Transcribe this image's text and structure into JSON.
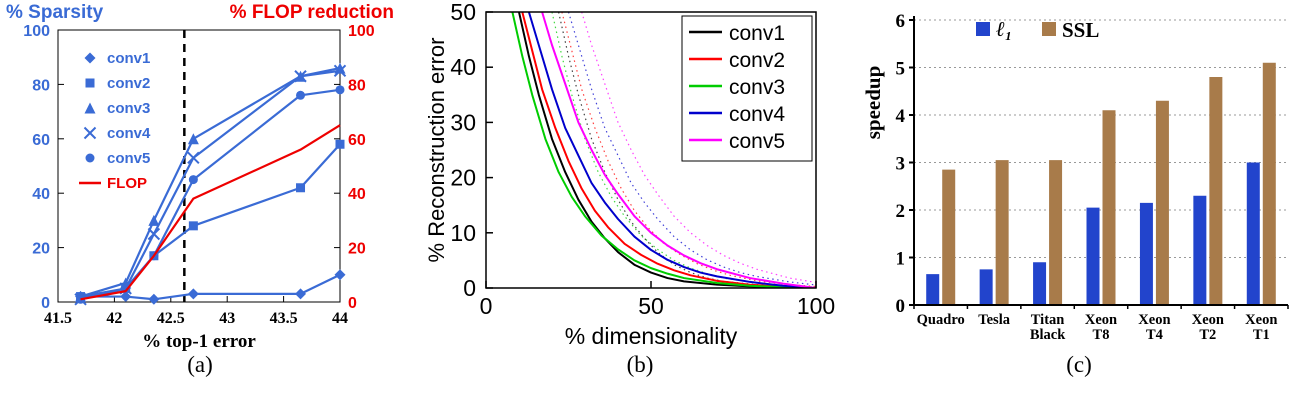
{
  "figure": {
    "captions": {
      "a": "(a)",
      "b": "(b)",
      "c": "(c)"
    }
  },
  "chart_data": [
    {
      "id": "a",
      "type": "line",
      "title_left": "% Sparsity",
      "title_right": "% FLOP reduction",
      "xlabel": "% top-1 error",
      "xlim": [
        41.5,
        44
      ],
      "xticks": [
        41.5,
        42,
        42.5,
        43,
        43.5,
        44
      ],
      "ylim": [
        0,
        100
      ],
      "yticks": [
        0,
        20,
        40,
        60,
        80,
        100
      ],
      "dashed_line_x": 42.62,
      "colors": {
        "left": "#3A6BD5",
        "right": "#EE0000"
      },
      "x": [
        41.7,
        42.1,
        42.35,
        42.7,
        43.65,
        44
      ],
      "series": [
        {
          "name": "conv1",
          "marker": "diamond",
          "color": "#3A6BD5",
          "values": [
            2,
            2,
            1,
            3,
            3,
            10
          ]
        },
        {
          "name": "conv2",
          "marker": "square",
          "color": "#3A6BD5",
          "values": [
            2,
            5,
            17,
            28,
            42,
            58
          ]
        },
        {
          "name": "conv3",
          "marker": "triangle",
          "color": "#3A6BD5",
          "values": [
            2,
            7,
            30,
            60,
            83,
            86
          ]
        },
        {
          "name": "conv4",
          "marker": "x",
          "color": "#3A6BD5",
          "values": [
            1,
            5,
            25,
            53,
            83,
            85
          ]
        },
        {
          "name": "conv5",
          "marker": "circle",
          "color": "#3A6BD5",
          "values": [
            1,
            5,
            17,
            45,
            76,
            78
          ]
        },
        {
          "name": "FLOP",
          "marker": "none",
          "color": "#EE0000",
          "values": [
            1,
            4,
            17,
            38,
            56,
            65
          ]
        }
      ]
    },
    {
      "id": "b",
      "type": "line",
      "xlabel": "% dimensionality",
      "ylabel": "% Reconstruction error",
      "xlim": [
        0,
        100
      ],
      "xticks": [
        0,
        50,
        100
      ],
      "ylim": [
        0,
        50
      ],
      "yticks": [
        0,
        10,
        20,
        30,
        40,
        50
      ],
      "legend_position": "top-right",
      "dotted_shift": 12,
      "series": [
        {
          "name": "conv1",
          "color": "#000000",
          "x": [
            10,
            13,
            16,
            20,
            24,
            28,
            32,
            36,
            40,
            45,
            50,
            55,
            60,
            70,
            80,
            90,
            100
          ],
          "y": [
            50,
            42,
            35,
            27,
            21,
            16,
            12,
            9,
            6.5,
            4.2,
            2.8,
            1.8,
            1.2,
            0.6,
            0.3,
            0.1,
            0
          ]
        },
        {
          "name": "conv2",
          "color": "#FF0000",
          "x": [
            11,
            14,
            17,
            21,
            25,
            29,
            33,
            37,
            42,
            47,
            52,
            57,
            62,
            70,
            80,
            90,
            100
          ],
          "y": [
            50,
            43,
            36,
            29,
            23,
            18,
            14,
            11,
            8,
            6,
            4.4,
            3.2,
            2.3,
            1.3,
            0.6,
            0.2,
            0
          ]
        },
        {
          "name": "conv3",
          "color": "#00CC00",
          "x": [
            8,
            11,
            14,
            18,
            22,
            26,
            30,
            35,
            40,
            45,
            50,
            55,
            60,
            70,
            80,
            90,
            100
          ],
          "y": [
            50,
            42,
            35,
            27,
            21,
            16.5,
            13,
            9.5,
            7,
            5,
            3.6,
            2.6,
            1.8,
            0.9,
            0.4,
            0.15,
            0
          ]
        },
        {
          "name": "conv4",
          "color": "#0000CC",
          "x": [
            13,
            16,
            20,
            24,
            28,
            32,
            36,
            40,
            45,
            50,
            55,
            60,
            65,
            70,
            80,
            90,
            100
          ],
          "y": [
            50,
            44,
            36,
            29,
            24,
            19,
            15.5,
            12.5,
            9.3,
            6.9,
            5.1,
            3.8,
            2.8,
            2.1,
            1.1,
            0.4,
            0
          ]
        },
        {
          "name": "conv5",
          "color": "#FF00FF",
          "x": [
            17,
            20,
            24,
            28,
            32,
            36,
            40,
            45,
            50,
            55,
            60,
            65,
            70,
            80,
            90,
            100
          ],
          "y": [
            50,
            44,
            37,
            30,
            25,
            20.5,
            17,
            13,
            10,
            7.7,
            5.9,
            4.5,
            3.4,
            1.8,
            0.8,
            0
          ]
        }
      ]
    },
    {
      "id": "c",
      "type": "bar",
      "ylabel": "speedup",
      "ylim": [
        0,
        6
      ],
      "yticks": [
        0,
        1,
        2,
        3,
        4,
        5,
        6
      ],
      "categories": [
        "Quadro",
        "Tesla",
        "Titan Black",
        "Xeon T8",
        "Xeon T4",
        "Xeon T2",
        "Xeon T1"
      ],
      "category_lines": [
        [
          "Quadro"
        ],
        [
          "Tesla"
        ],
        [
          "Titan",
          "Black"
        ],
        [
          "Xeon",
          "T8"
        ],
        [
          "Xeon",
          "T4"
        ],
        [
          "Xeon",
          "T2"
        ],
        [
          "Xeon",
          "T1"
        ]
      ],
      "series": [
        {
          "name": "ℓ₁",
          "color": "#2244CC",
          "values": [
            0.65,
            0.75,
            0.9,
            2.05,
            2.15,
            2.3,
            3.0
          ]
        },
        {
          "name": "SSL",
          "color": "#A87B4A",
          "values": [
            2.85,
            3.05,
            3.05,
            4.1,
            4.3,
            4.8,
            5.1
          ]
        }
      ]
    }
  ]
}
